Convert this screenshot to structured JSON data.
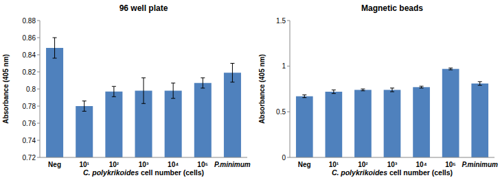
{
  "chart_data": [
    {
      "type": "bar",
      "title": "96 well plate",
      "x_label": "C. polykrikoides cell number (cells)",
      "y_label": "Absorbance (405 nm)",
      "categories": [
        "Neg",
        "10¹",
        "10²",
        "10³",
        "10⁴",
        "10⁵",
        "P.minimum"
      ],
      "values": [
        0.848,
        0.78,
        0.797,
        0.798,
        0.798,
        0.807,
        0.819
      ],
      "errors": [
        0.012,
        0.006,
        0.006,
        0.015,
        0.009,
        0.006,
        0.011
      ],
      "color": "#4f81bd",
      "ylim": [
        0.72,
        0.88
      ],
      "yticks": [
        0.72,
        0.74,
        0.76,
        0.78,
        0.8,
        0.82,
        0.84,
        0.86,
        0.88
      ],
      "grid": false
    },
    {
      "type": "bar",
      "title": "Magnetic beads",
      "x_label": "C. polykrikoides cell number (cells)",
      "y_label": "Absorbance (405 nm)",
      "categories": [
        "Neg",
        "10¹",
        "10²",
        "10³",
        "10⁴",
        "10⁵",
        "P.minimum"
      ],
      "values": [
        0.67,
        0.72,
        0.74,
        0.74,
        0.77,
        0.97,
        0.81
      ],
      "errors": [
        0.015,
        0.02,
        0.01,
        0.02,
        0.01,
        0.01,
        0.02
      ],
      "color": "#4f81bd",
      "ylim": [
        0,
        1.5
      ],
      "yticks": [
        0,
        0.5,
        1,
        1.5
      ],
      "grid": false
    }
  ]
}
